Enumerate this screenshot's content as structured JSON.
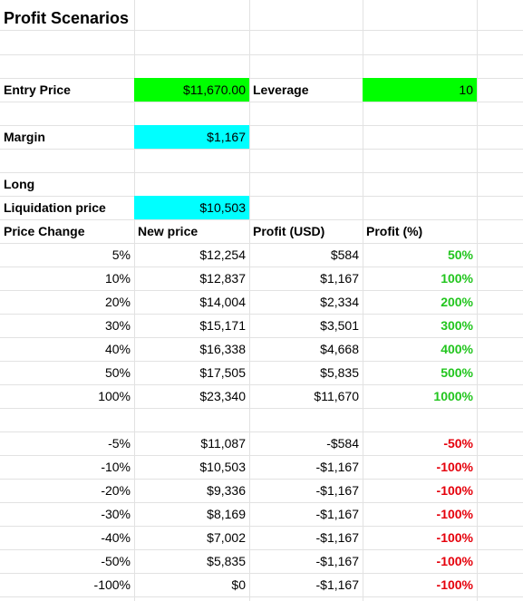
{
  "title": "Profit Scenarios",
  "colors": {
    "green_fill": "#00ff00",
    "cyan_fill": "#00ffff",
    "positive": "#22c51e",
    "negative": "#e5000b",
    "gridline": "#e2e2e2"
  },
  "inputs": {
    "entry_price_label": "Entry Price",
    "entry_price_value": "$11,670.00",
    "leverage_label": "Leverage",
    "leverage_value": "10",
    "margin_label": "Margin",
    "margin_value": "$1,167",
    "position_label": "Long",
    "liquidation_label": "Liquidation price",
    "liquidation_value": "$10,503"
  },
  "table": {
    "headers": [
      "Price Change",
      "New price",
      "Profit (USD)",
      "Profit (%)"
    ],
    "gains": [
      [
        "5%",
        "$12,254",
        "$584",
        "50%"
      ],
      [
        "10%",
        "$12,837",
        "$1,167",
        "100%"
      ],
      [
        "20%",
        "$14,004",
        "$2,334",
        "200%"
      ],
      [
        "30%",
        "$15,171",
        "$3,501",
        "300%"
      ],
      [
        "40%",
        "$16,338",
        "$4,668",
        "400%"
      ],
      [
        "50%",
        "$17,505",
        "$5,835",
        "500%"
      ],
      [
        "100%",
        "$23,340",
        "$11,670",
        "1000%"
      ]
    ],
    "losses": [
      [
        "-5%",
        "$11,087",
        "-$584",
        "-50%"
      ],
      [
        "-10%",
        "$10,503",
        "-$1,167",
        "-100%"
      ],
      [
        "-20%",
        "$9,336",
        "-$1,167",
        "-100%"
      ],
      [
        "-30%",
        "$8,169",
        "-$1,167",
        "-100%"
      ],
      [
        "-40%",
        "$7,002",
        "-$1,167",
        "-100%"
      ],
      [
        "-50%",
        "$5,835",
        "-$1,167",
        "-100%"
      ],
      [
        "-100%",
        "$0",
        "-$1,167",
        "-100%"
      ]
    ]
  }
}
